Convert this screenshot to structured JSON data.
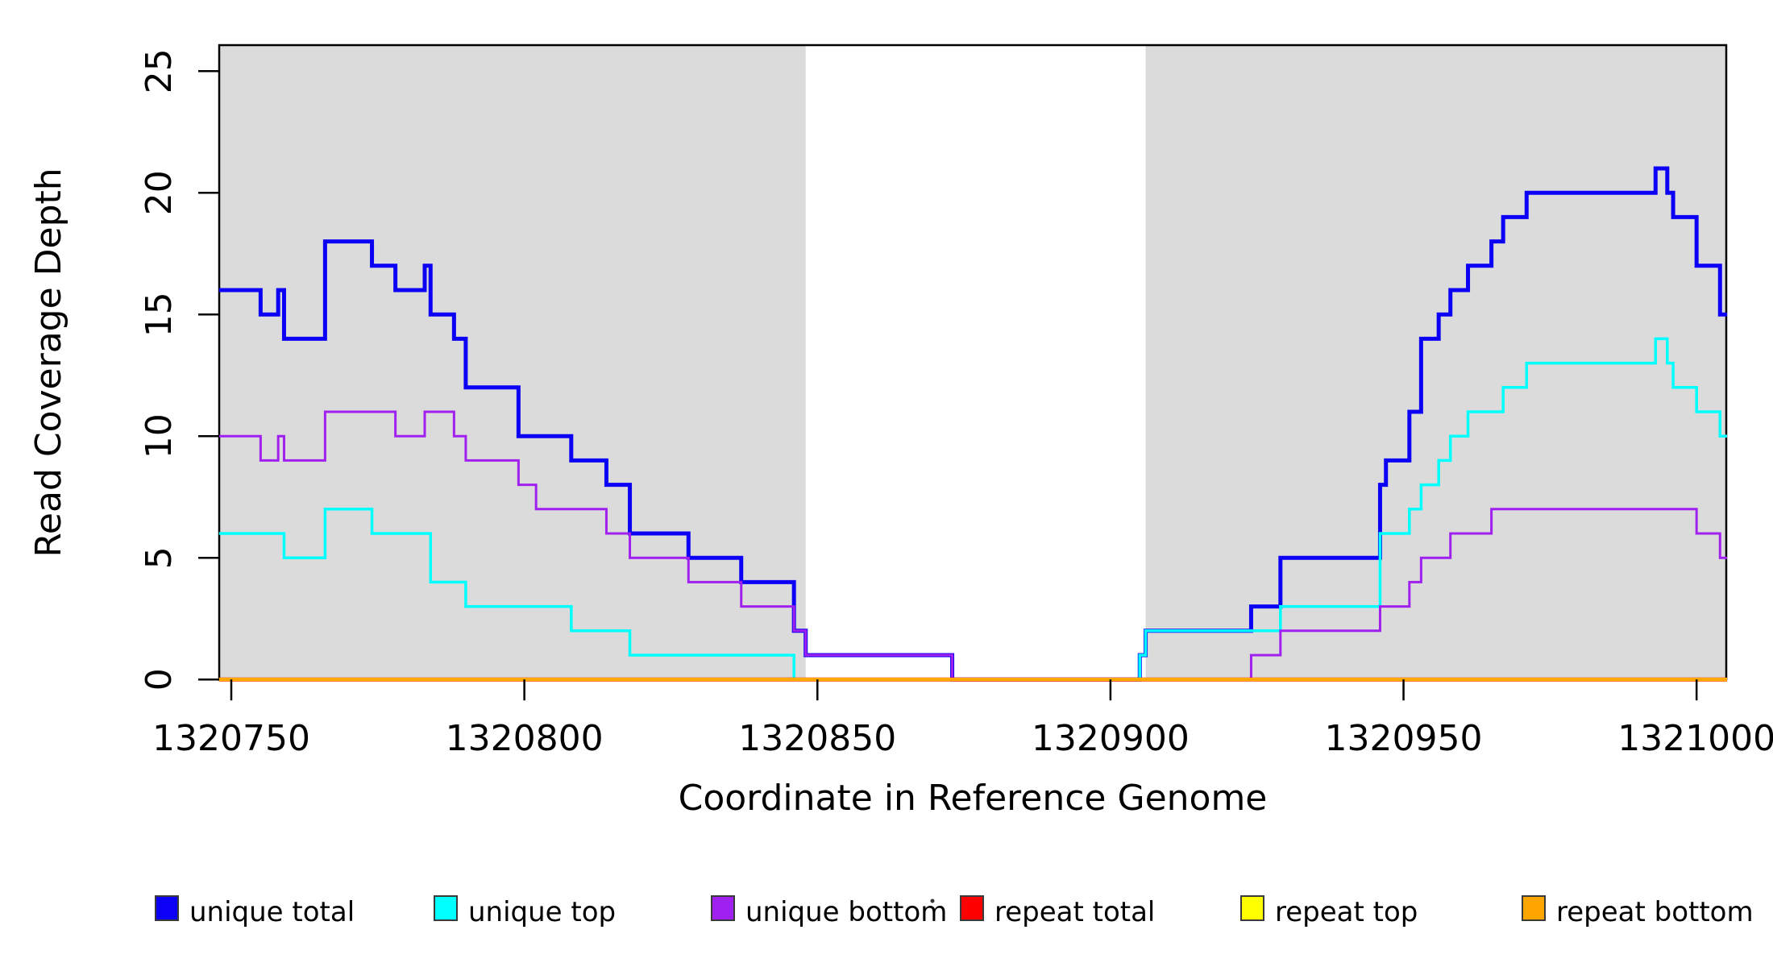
{
  "chart_data": {
    "type": "line",
    "subtype": "step-coverage-plot",
    "title": "",
    "xlabel": "Coordinate in Reference Genome",
    "ylabel": "Read Coverage Depth",
    "xlim": [
      1320747.9,
      1321005.2
    ],
    "ylim": [
      0,
      26
    ],
    "x_ticks": [
      1320750,
      1320800,
      1320850,
      1320900,
      1320950,
      1321000
    ],
    "y_ticks": [
      0,
      5,
      10,
      15,
      20,
      25
    ],
    "grid": false,
    "legend_position": "bottom",
    "shade_color": "#dbdbdb",
    "shaded_regions": [
      {
        "from": 1320747.9,
        "to": 1320848
      },
      {
        "from": 1320906,
        "to": 1321005.2
      }
    ],
    "series": [
      {
        "name": "unique total",
        "color": "#0b00f5",
        "points": [
          [
            1320747.9,
            16
          ],
          [
            1320755,
            15
          ],
          [
            1320758,
            16
          ],
          [
            1320759,
            14
          ],
          [
            1320766,
            18
          ],
          [
            1320774,
            17
          ],
          [
            1320778,
            16
          ],
          [
            1320783,
            17
          ],
          [
            1320784,
            15
          ],
          [
            1320788,
            14
          ],
          [
            1320790,
            12
          ],
          [
            1320799,
            10
          ],
          [
            1320808,
            9
          ],
          [
            1320814,
            8
          ],
          [
            1320818,
            6
          ],
          [
            1320828,
            5
          ],
          [
            1320837,
            4
          ],
          [
            1320846,
            2
          ],
          [
            1320848,
            1
          ],
          [
            1320873,
            0
          ],
          [
            1320905,
            1
          ],
          [
            1320906,
            2
          ],
          [
            1320924,
            3
          ],
          [
            1320929,
            5
          ],
          [
            1320946,
            8
          ],
          [
            1320947,
            9
          ],
          [
            1320951,
            11
          ],
          [
            1320953,
            14
          ],
          [
            1320956,
            15
          ],
          [
            1320958,
            16
          ],
          [
            1320961,
            17
          ],
          [
            1320965,
            18
          ],
          [
            1320967,
            19
          ],
          [
            1320971,
            20
          ],
          [
            1320993,
            21
          ],
          [
            1320995,
            20
          ],
          [
            1320996,
            19
          ],
          [
            1321000,
            17
          ],
          [
            1321004,
            15
          ],
          [
            1321005.2,
            15
          ]
        ]
      },
      {
        "name": "unique top",
        "color": "#00ffff",
        "points": [
          [
            1320747.9,
            6
          ],
          [
            1320759,
            5
          ],
          [
            1320766,
            7
          ],
          [
            1320774,
            6
          ],
          [
            1320784,
            4
          ],
          [
            1320790,
            3
          ],
          [
            1320808,
            2
          ],
          [
            1320818,
            1
          ],
          [
            1320846,
            0
          ],
          [
            1320905,
            1
          ],
          [
            1320906,
            2
          ],
          [
            1320929,
            3
          ],
          [
            1320946,
            6
          ],
          [
            1320951,
            7
          ],
          [
            1320953,
            8
          ],
          [
            1320956,
            9
          ],
          [
            1320958,
            10
          ],
          [
            1320961,
            11
          ],
          [
            1320967,
            12
          ],
          [
            1320971,
            13
          ],
          [
            1320993,
            14
          ],
          [
            1320995,
            13
          ],
          [
            1320996,
            12
          ],
          [
            1321000,
            11
          ],
          [
            1321004,
            10
          ],
          [
            1321005.2,
            10
          ]
        ]
      },
      {
        "name": "unique bottom",
        "color": "#a020f0",
        "points": [
          [
            1320747.9,
            10
          ],
          [
            1320755,
            9
          ],
          [
            1320758,
            10
          ],
          [
            1320759,
            9
          ],
          [
            1320766,
            11
          ],
          [
            1320778,
            10
          ],
          [
            1320783,
            11
          ],
          [
            1320788,
            10
          ],
          [
            1320790,
            9
          ],
          [
            1320799,
            8
          ],
          [
            1320802,
            7
          ],
          [
            1320814,
            6
          ],
          [
            1320818,
            5
          ],
          [
            1320828,
            4
          ],
          [
            1320837,
            3
          ],
          [
            1320846,
            2
          ],
          [
            1320848,
            1
          ],
          [
            1320873,
            0
          ],
          [
            1320924,
            1
          ],
          [
            1320929,
            2
          ],
          [
            1320946,
            3
          ],
          [
            1320951,
            4
          ],
          [
            1320953,
            5
          ],
          [
            1320958,
            6
          ],
          [
            1320965,
            7
          ],
          [
            1321000,
            6
          ],
          [
            1321004,
            5
          ],
          [
            1321005.2,
            5
          ]
        ]
      },
      {
        "name": "repeat total",
        "color": "#ff0000",
        "points": [
          [
            1320747.9,
            0
          ],
          [
            1321005.2,
            0
          ]
        ]
      },
      {
        "name": "repeat top",
        "color": "#ffff00",
        "points": [
          [
            1320747.9,
            0
          ],
          [
            1321005.2,
            0
          ]
        ]
      },
      {
        "name": "repeat bottom",
        "color": "#ffa500",
        "points": [
          [
            1320747.9,
            0
          ],
          [
            1321005.2,
            0
          ]
        ]
      }
    ]
  },
  "legend": {
    "items": [
      {
        "label": "unique total",
        "color": "#0b00f5"
      },
      {
        "label": "unique top",
        "color": "#00ffff"
      },
      {
        "label": "unique bottom",
        "color": "#a020f0"
      },
      {
        "label": "repeat total",
        "color": "#ff0000"
      },
      {
        "label": "repeat top",
        "color": "#ffff00"
      },
      {
        "label": "repeat bottom",
        "color": "#ffa500"
      }
    ]
  },
  "axes": {
    "x_label": "Coordinate in Reference Genome",
    "y_label": "Read Coverage Depth"
  }
}
